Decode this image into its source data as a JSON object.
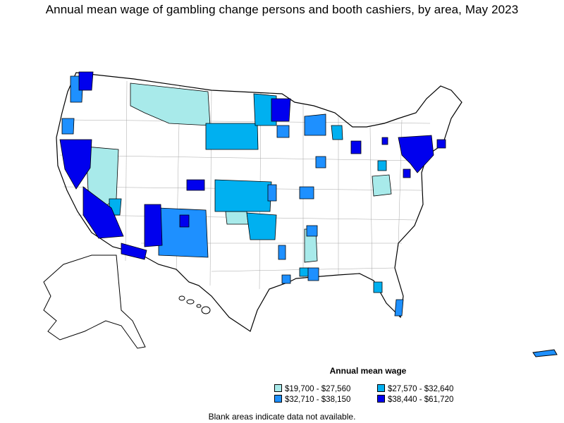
{
  "title": "Annual mean wage of gambling change persons and booth cashiers, by area, May 2023",
  "legend": {
    "title": "Annual mean wage",
    "items": [
      {
        "label": "$19,700 - $27,560",
        "color": "#a8eaea"
      },
      {
        "label": "$27,570 - $32,640",
        "color": "#00b0f0"
      },
      {
        "label": "$32,710 - $38,150",
        "color": "#1e90ff"
      },
      {
        "label": "$38,440 - $61,720",
        "color": "#0000ee"
      }
    ]
  },
  "note": "Blank areas indicate data not available."
}
